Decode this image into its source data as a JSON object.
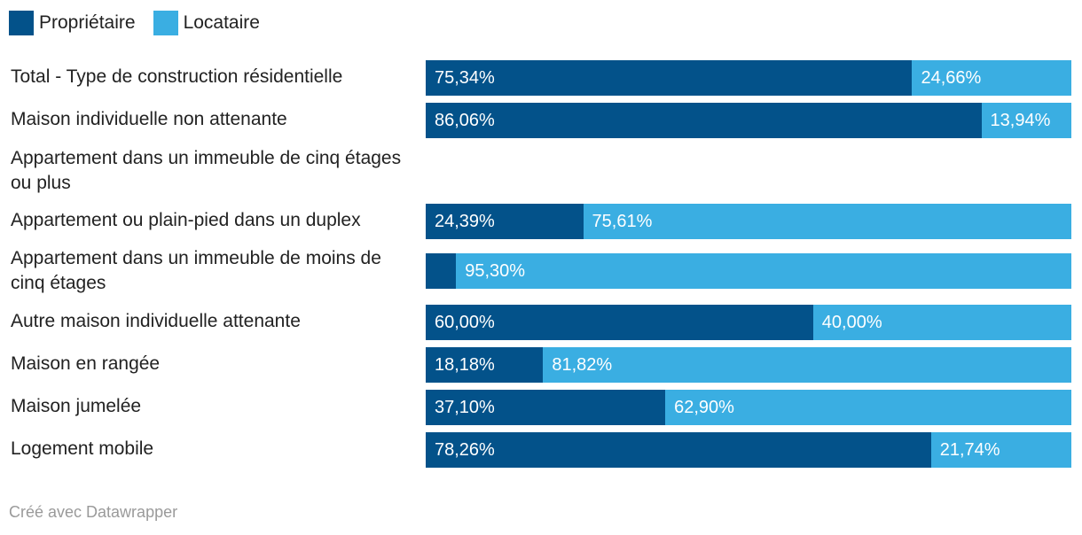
{
  "legend": [
    {
      "name": "Propriétaire",
      "color": "#03528a"
    },
    {
      "name": "Locataire",
      "color": "#3aaee2"
    }
  ],
  "chart_data": {
    "type": "bar",
    "orientation": "horizontal",
    "stacked": true,
    "categories": [
      "Total - Type de construction résidentielle",
      "Maison individuelle non attenante",
      "Appartement dans un immeuble de cinq étages ou plus",
      "Appartement ou plain-pied dans un duplex",
      "Appartement dans un immeuble de moins de cinq étages",
      "Autre maison individuelle attenante",
      "Maison en rangée",
      "Maison jumelée",
      "Logement mobile"
    ],
    "series": [
      {
        "name": "Propriétaire",
        "values": [
          75.34,
          86.06,
          null,
          24.39,
          4.7,
          60.0,
          18.18,
          37.1,
          78.26
        ],
        "labels": [
          "75,34%",
          "86,06%",
          "",
          "24,39%",
          "",
          "60,00%",
          "18,18%",
          "37,10%",
          "78,26%"
        ]
      },
      {
        "name": "Locataire",
        "values": [
          24.66,
          13.94,
          null,
          75.61,
          95.3,
          40.0,
          81.82,
          62.9,
          21.74
        ],
        "labels": [
          "24,66%",
          "13,94%",
          "",
          "75,61%",
          "95,30%",
          "40,00%",
          "81,82%",
          "62,90%",
          "21,74%"
        ]
      }
    ],
    "xlim": [
      0,
      100
    ],
    "legend_position": "top-left",
    "grid": false
  },
  "footer": {
    "credit": "Créé avec Datawrapper"
  }
}
